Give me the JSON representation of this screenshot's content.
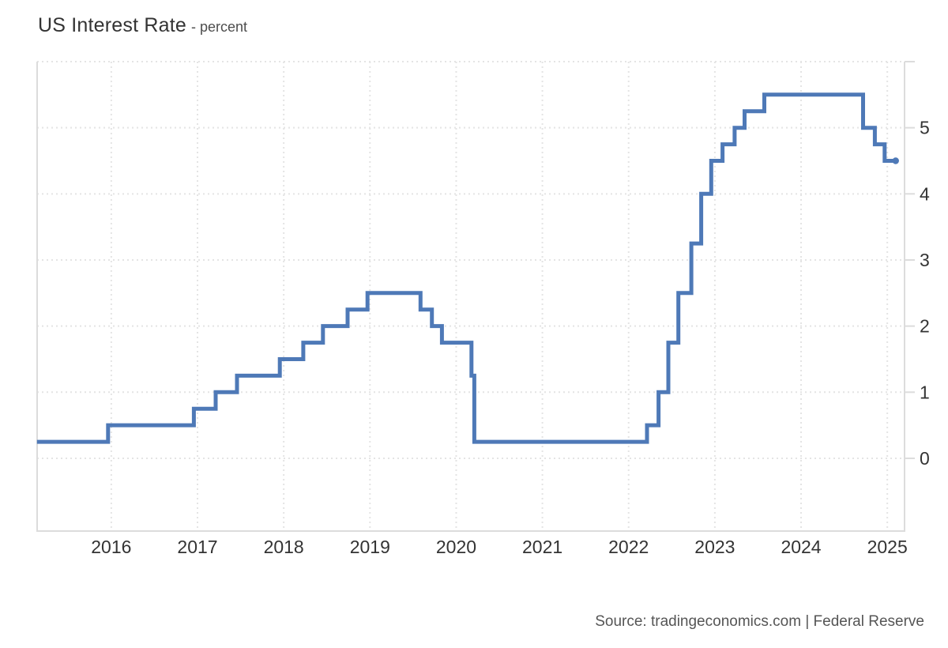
{
  "header": {
    "title": "US Interest Rate",
    "subtitle": "- percent"
  },
  "footer": {
    "source": "Source: tradingeconomics.com | Federal Reserve"
  },
  "colors": {
    "line": "#4e79b7",
    "grid": "#e4e4e4",
    "border": "#dcdcdc",
    "tick_label": "#333333",
    "title": "#333333",
    "subtitle": "#4d4d4d",
    "source": "#555555"
  },
  "chart_data": {
    "type": "line",
    "step": "after",
    "title": "US Interest Rate",
    "ylabel": "percent",
    "xlabel": "",
    "legend": "none",
    "grid": "dotted",
    "y_axis_side": "right",
    "x_ticks": [
      2016,
      2017,
      2018,
      2019,
      2020,
      2021,
      2022,
      2023,
      2024,
      2025
    ],
    "y_ticks": [
      0,
      1,
      2,
      3,
      4,
      5
    ],
    "y_gridlines": [
      0,
      1,
      2,
      3,
      4,
      5,
      6
    ],
    "x_range": [
      2015.14,
      2025.2
    ],
    "y_range": [
      -1.1,
      6.0
    ],
    "end_date": "2025-02-05",
    "end_marker": true,
    "series": [
      {
        "name": "US Interest Rate",
        "points": [
          {
            "date": "2015-02-20",
            "rate": 0.25
          },
          {
            "date": "2015-12-17",
            "rate": 0.5
          },
          {
            "date": "2016-12-15",
            "rate": 0.75
          },
          {
            "date": "2017-03-16",
            "rate": 1.0
          },
          {
            "date": "2017-06-15",
            "rate": 1.25
          },
          {
            "date": "2017-12-14",
            "rate": 1.5
          },
          {
            "date": "2018-03-22",
            "rate": 1.75
          },
          {
            "date": "2018-06-14",
            "rate": 2.0
          },
          {
            "date": "2018-09-27",
            "rate": 2.25
          },
          {
            "date": "2018-12-20",
            "rate": 2.5
          },
          {
            "date": "2019-08-01",
            "rate": 2.25
          },
          {
            "date": "2019-09-19",
            "rate": 2.0
          },
          {
            "date": "2019-10-31",
            "rate": 1.75
          },
          {
            "date": "2020-03-04",
            "rate": 1.25
          },
          {
            "date": "2020-03-16",
            "rate": 0.25
          },
          {
            "date": "2022-03-17",
            "rate": 0.5
          },
          {
            "date": "2022-05-05",
            "rate": 1.0
          },
          {
            "date": "2022-06-16",
            "rate": 1.75
          },
          {
            "date": "2022-07-28",
            "rate": 2.5
          },
          {
            "date": "2022-09-22",
            "rate": 3.25
          },
          {
            "date": "2022-11-03",
            "rate": 4.0
          },
          {
            "date": "2022-12-15",
            "rate": 4.5
          },
          {
            "date": "2023-02-02",
            "rate": 4.75
          },
          {
            "date": "2023-03-23",
            "rate": 5.0
          },
          {
            "date": "2023-05-04",
            "rate": 5.25
          },
          {
            "date": "2023-07-27",
            "rate": 5.5
          },
          {
            "date": "2024-09-19",
            "rate": 5.0
          },
          {
            "date": "2024-11-08",
            "rate": 4.75
          },
          {
            "date": "2024-12-19",
            "rate": 4.5
          }
        ]
      }
    ]
  }
}
